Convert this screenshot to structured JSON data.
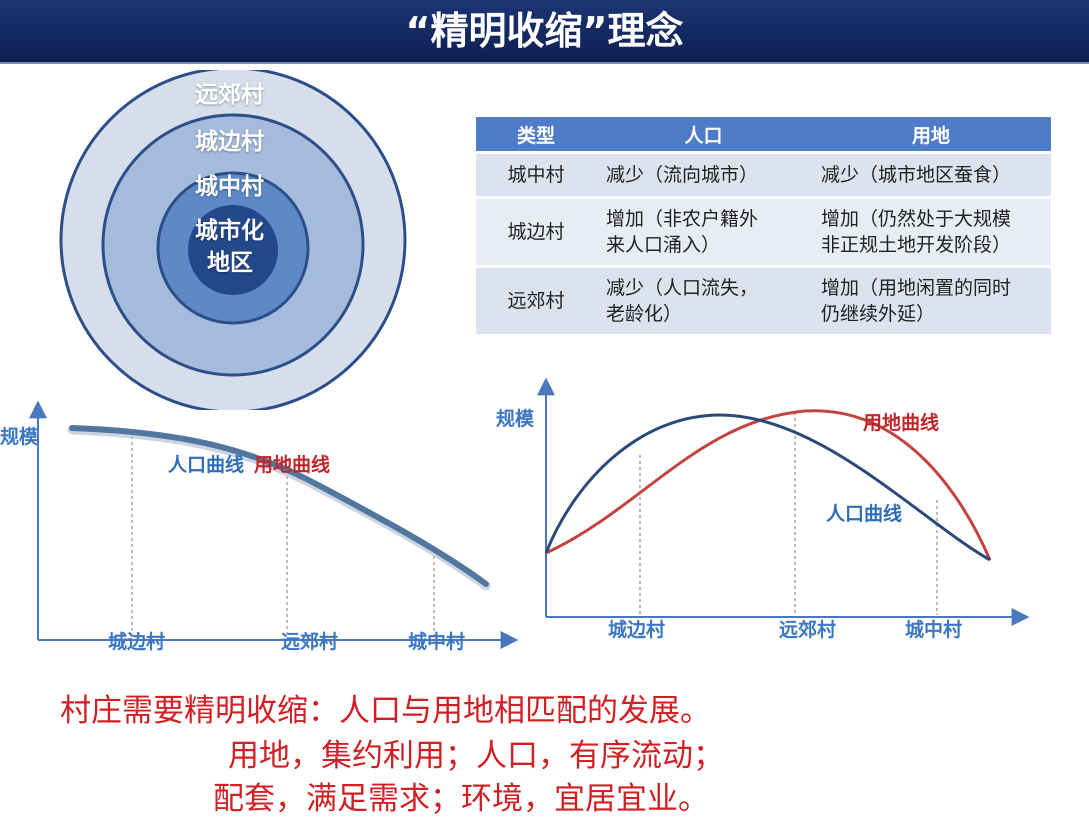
{
  "title": "“精明收缩”理念",
  "rings": {
    "outer_label": "远郊村",
    "second_label": "城边村",
    "third_label": "城中村",
    "core_label_line1": "城市化",
    "core_label_line2": "地区",
    "colors": [
      "#d7deeb",
      "#9fb7d9",
      "#5e89c6",
      "#254c91"
    ]
  },
  "table": {
    "headers": [
      "类型",
      "人口",
      "用地"
    ],
    "rows": [
      {
        "type": "城中村",
        "pop_line1": "减少（流向城市）",
        "pop_line2": "",
        "land_line1": "减少（城市地区蚕食）",
        "land_line2": ""
      },
      {
        "type": "城边村",
        "pop_line1": "增加（非农户籍外",
        "pop_line2": "来人口涌入）",
        "land_line1": "增加（仍然处于大规模",
        "land_line2": "非正规土地开发阶段）"
      },
      {
        "type": "远郊村",
        "pop_line1": "减少（人口流失，",
        "pop_line2": "老龄化）",
        "land_line1": "增加（用地闲置的同时",
        "land_line2": "仍继续外延）"
      }
    ],
    "header_color": "#4f7cc6"
  },
  "left_chart": {
    "y_label": "规模",
    "x_labels": [
      "城边村",
      "远郊村",
      "城中村"
    ],
    "pop_curve_label": "人口曲线",
    "land_curve_label": "用地曲线"
  },
  "right_chart": {
    "y_label": "规模",
    "x_labels": [
      "城边村",
      "远郊村",
      "城中村"
    ],
    "pop_curve_label": "人口曲线",
    "land_curve_label": "用地曲线"
  },
  "colors": {
    "population": "#2b4a7a",
    "land": "#c3443f",
    "axis": "#3c77c4",
    "text_red": "#d11f24"
  },
  "bottom_text": {
    "line1": "村庄需要精明收缩：人口与用地相匹配的发展。",
    "line2": "用地，集约利用；人口，有序流动；",
    "line3": "配套，满足需求；环境，宜居宜业。"
  }
}
